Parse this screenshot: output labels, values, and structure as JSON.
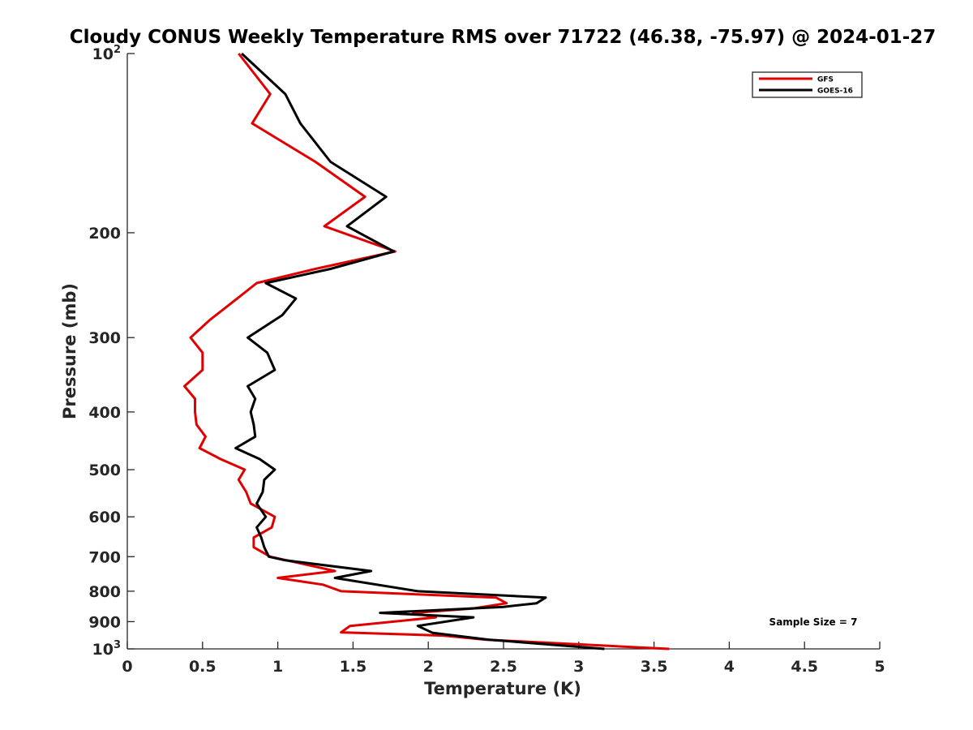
{
  "chart_data": {
    "type": "line",
    "title": "Cloudy CONUS Weekly Temperature RMS over 71722 (46.38, -75.97) @ 2024-01-27",
    "xlabel": "Temperature (K)",
    "ylabel": "Pressure (mb)",
    "xlim": [
      0,
      5
    ],
    "ylim": [
      100,
      1000
    ],
    "y_scale": "log",
    "y_reversed": true,
    "grid": false,
    "legend_position": "top-right",
    "x_ticks": [
      "0",
      "0.5",
      "1",
      "1.5",
      "2",
      "2.5",
      "3",
      "3.5",
      "4",
      "4.5",
      "5"
    ],
    "x_tick_values": [
      0,
      0.5,
      1,
      1.5,
      2,
      2.5,
      3,
      3.5,
      4,
      4.5,
      5
    ],
    "y_ticks": [
      {
        "value": 100,
        "label": "10",
        "sup": "2"
      },
      {
        "value": 200,
        "label": "200",
        "sup": ""
      },
      {
        "value": 300,
        "label": "300",
        "sup": ""
      },
      {
        "value": 400,
        "label": "400",
        "sup": ""
      },
      {
        "value": 500,
        "label": "500",
        "sup": ""
      },
      {
        "value": 600,
        "label": "600",
        "sup": ""
      },
      {
        "value": 700,
        "label": "700",
        "sup": ""
      },
      {
        "value": 800,
        "label": "800",
        "sup": ""
      },
      {
        "value": 900,
        "label": "900",
        "sup": ""
      },
      {
        "value": 1000,
        "label": "10",
        "sup": "3"
      }
    ],
    "annotation": "Sample Size = 7",
    "series": [
      {
        "name": "GFS",
        "color": "#e00000",
        "points": [
          [
            0.74,
            100
          ],
          [
            0.95,
            117
          ],
          [
            0.83,
            131
          ],
          [
            1.25,
            152
          ],
          [
            1.58,
            174
          ],
          [
            1.31,
            195
          ],
          [
            1.78,
            215
          ],
          [
            1.25,
            230
          ],
          [
            0.86,
            243
          ],
          [
            0.73,
            258
          ],
          [
            0.55,
            280
          ],
          [
            0.42,
            300
          ],
          [
            0.5,
            318
          ],
          [
            0.5,
            340
          ],
          [
            0.38,
            362
          ],
          [
            0.45,
            380
          ],
          [
            0.45,
            400
          ],
          [
            0.46,
            420
          ],
          [
            0.52,
            440
          ],
          [
            0.48,
            460
          ],
          [
            0.62,
            480
          ],
          [
            0.78,
            500
          ],
          [
            0.74,
            520
          ],
          [
            0.79,
            545
          ],
          [
            0.82,
            570
          ],
          [
            0.98,
            600
          ],
          [
            0.96,
            625
          ],
          [
            0.84,
            650
          ],
          [
            0.84,
            675
          ],
          [
            0.95,
            700
          ],
          [
            1.38,
            740
          ],
          [
            1.0,
            760
          ],
          [
            1.3,
            780
          ],
          [
            1.42,
            800
          ],
          [
            2.45,
            820
          ],
          [
            2.52,
            838
          ],
          [
            2.3,
            855
          ],
          [
            1.9,
            870
          ],
          [
            2.05,
            885
          ],
          [
            1.48,
            915
          ],
          [
            1.42,
            938
          ],
          [
            2.1,
            950
          ],
          [
            2.38,
            965
          ],
          [
            3.6,
            1000
          ]
        ]
      },
      {
        "name": "GOES-16",
        "color": "#000000",
        "points": [
          [
            0.76,
            100
          ],
          [
            1.05,
            117
          ],
          [
            1.15,
            131
          ],
          [
            1.35,
            152
          ],
          [
            1.72,
            174
          ],
          [
            1.46,
            195
          ],
          [
            1.77,
            215
          ],
          [
            1.35,
            230
          ],
          [
            0.92,
            243
          ],
          [
            1.12,
            258
          ],
          [
            1.03,
            275
          ],
          [
            0.8,
            300
          ],
          [
            0.93,
            318
          ],
          [
            0.98,
            340
          ],
          [
            0.8,
            362
          ],
          [
            0.85,
            380
          ],
          [
            0.82,
            400
          ],
          [
            0.84,
            420
          ],
          [
            0.85,
            440
          ],
          [
            0.72,
            460
          ],
          [
            0.88,
            480
          ],
          [
            0.98,
            500
          ],
          [
            0.91,
            520
          ],
          [
            0.9,
            545
          ],
          [
            0.86,
            570
          ],
          [
            0.92,
            600
          ],
          [
            0.86,
            625
          ],
          [
            0.89,
            650
          ],
          [
            0.91,
            675
          ],
          [
            0.94,
            700
          ],
          [
            1.05,
            710
          ],
          [
            1.62,
            740
          ],
          [
            1.38,
            760
          ],
          [
            1.93,
            800
          ],
          [
            2.78,
            820
          ],
          [
            2.72,
            838
          ],
          [
            2.5,
            850
          ],
          [
            1.68,
            870
          ],
          [
            2.3,
            885
          ],
          [
            1.93,
            915
          ],
          [
            2.03,
            940
          ],
          [
            2.4,
            965
          ],
          [
            3.17,
            1000
          ]
        ]
      }
    ]
  }
}
